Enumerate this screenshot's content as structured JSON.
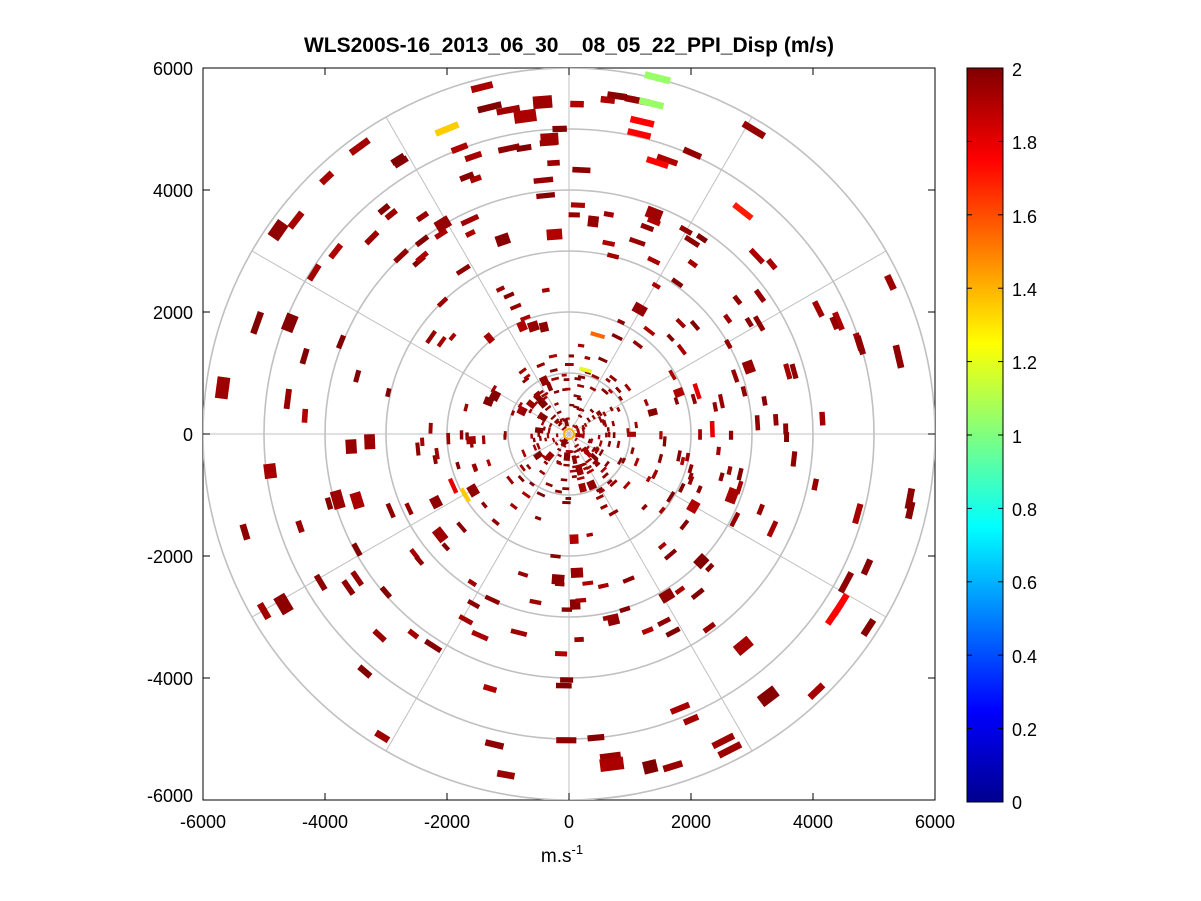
{
  "chart_data": {
    "type": "polar_ppi_scatter",
    "title": "WLS200S-16_2013_06_30__08_05_22_PPI_Disp (m/s)",
    "xlabel": "m.s",
    "xlabel_superscript": "-1",
    "xlim": [
      -6000,
      6000
    ],
    "ylim": [
      -6000,
      6000
    ],
    "xticks": [
      "-6000",
      "-4000",
      "-2000",
      "0",
      "2000",
      "4000",
      "6000"
    ],
    "yticks": [
      "6000",
      "4000",
      "2000",
      "0",
      "-2000",
      "-4000",
      "-6000"
    ],
    "polar_grid": {
      "rings": [
        1000,
        2000,
        3000,
        4000,
        5000,
        6000
      ],
      "spoke_angles_deg": [
        0,
        30,
        60,
        90,
        120,
        150,
        180,
        210,
        240,
        270,
        300,
        330
      ]
    },
    "colorbar": {
      "colormap": "jet",
      "range": [
        0,
        2
      ],
      "ticks": [
        "2",
        "1.8",
        "1.6",
        "1.4",
        "1.2",
        "1",
        "0.8",
        "0.6",
        "0.4",
        "0.2",
        "0"
      ]
    },
    "highlighted_points": [
      {
        "x": 1450,
        "y": 5840,
        "value": 1.05
      },
      {
        "x": 1350,
        "y": 5420,
        "value": 1.05
      },
      {
        "x": -2000,
        "y": 5000,
        "value": 1.35
      },
      {
        "x": 1200,
        "y": 5120,
        "value": 1.75
      },
      {
        "x": 1150,
        "y": 4920,
        "value": 1.75
      },
      {
        "x": 1450,
        "y": 4450,
        "value": 1.75
      },
      {
        "x": 2850,
        "y": 3650,
        "value": 1.7
      },
      {
        "x": 2100,
        "y": 700,
        "value": 1.8
      },
      {
        "x": 2350,
        "y": 80,
        "value": 1.8
      },
      {
        "x": 4450,
        "y": -2800,
        "value": 1.75
      },
      {
        "x": 4350,
        "y": -2950,
        "value": 1.75
      },
      {
        "x": -1900,
        "y": -850,
        "value": 1.8
      },
      {
        "x": 470,
        "y": 1620,
        "value": 1.55
      },
      {
        "x": 270,
        "y": 1050,
        "value": 1.2
      },
      {
        "x": -1700,
        "y": -1000,
        "value": 1.35
      }
    ]
  }
}
